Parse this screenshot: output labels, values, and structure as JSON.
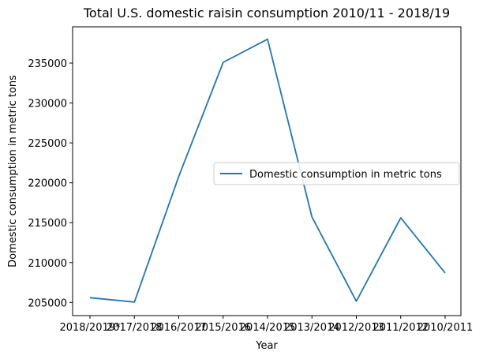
{
  "chart_data": {
    "type": "line",
    "title": "Total U.S. domestic raisin consumption 2010/11 - 2018/19",
    "xlabel": "Year",
    "ylabel": "Domestic consumption in metric tons",
    "categories": [
      "2018/2019*",
      "2017/2018",
      "2016/2017",
      "2015/2016",
      "2014/2015",
      "2013/2014",
      "2012/2013",
      "2011/2012",
      "2010/2011"
    ],
    "series": [
      {
        "name": "Domestic consumption in metric tons",
        "color": "#1f77b4",
        "values": [
          205600,
          205050,
          220800,
          235100,
          238000,
          215700,
          205150,
          215600,
          208700
        ]
      }
    ],
    "yticks": [
      205000,
      210000,
      215000,
      220000,
      225000,
      230000,
      235000
    ],
    "ylim": [
      203350,
      239550
    ],
    "grid": false,
    "legend_position": "center-right"
  }
}
